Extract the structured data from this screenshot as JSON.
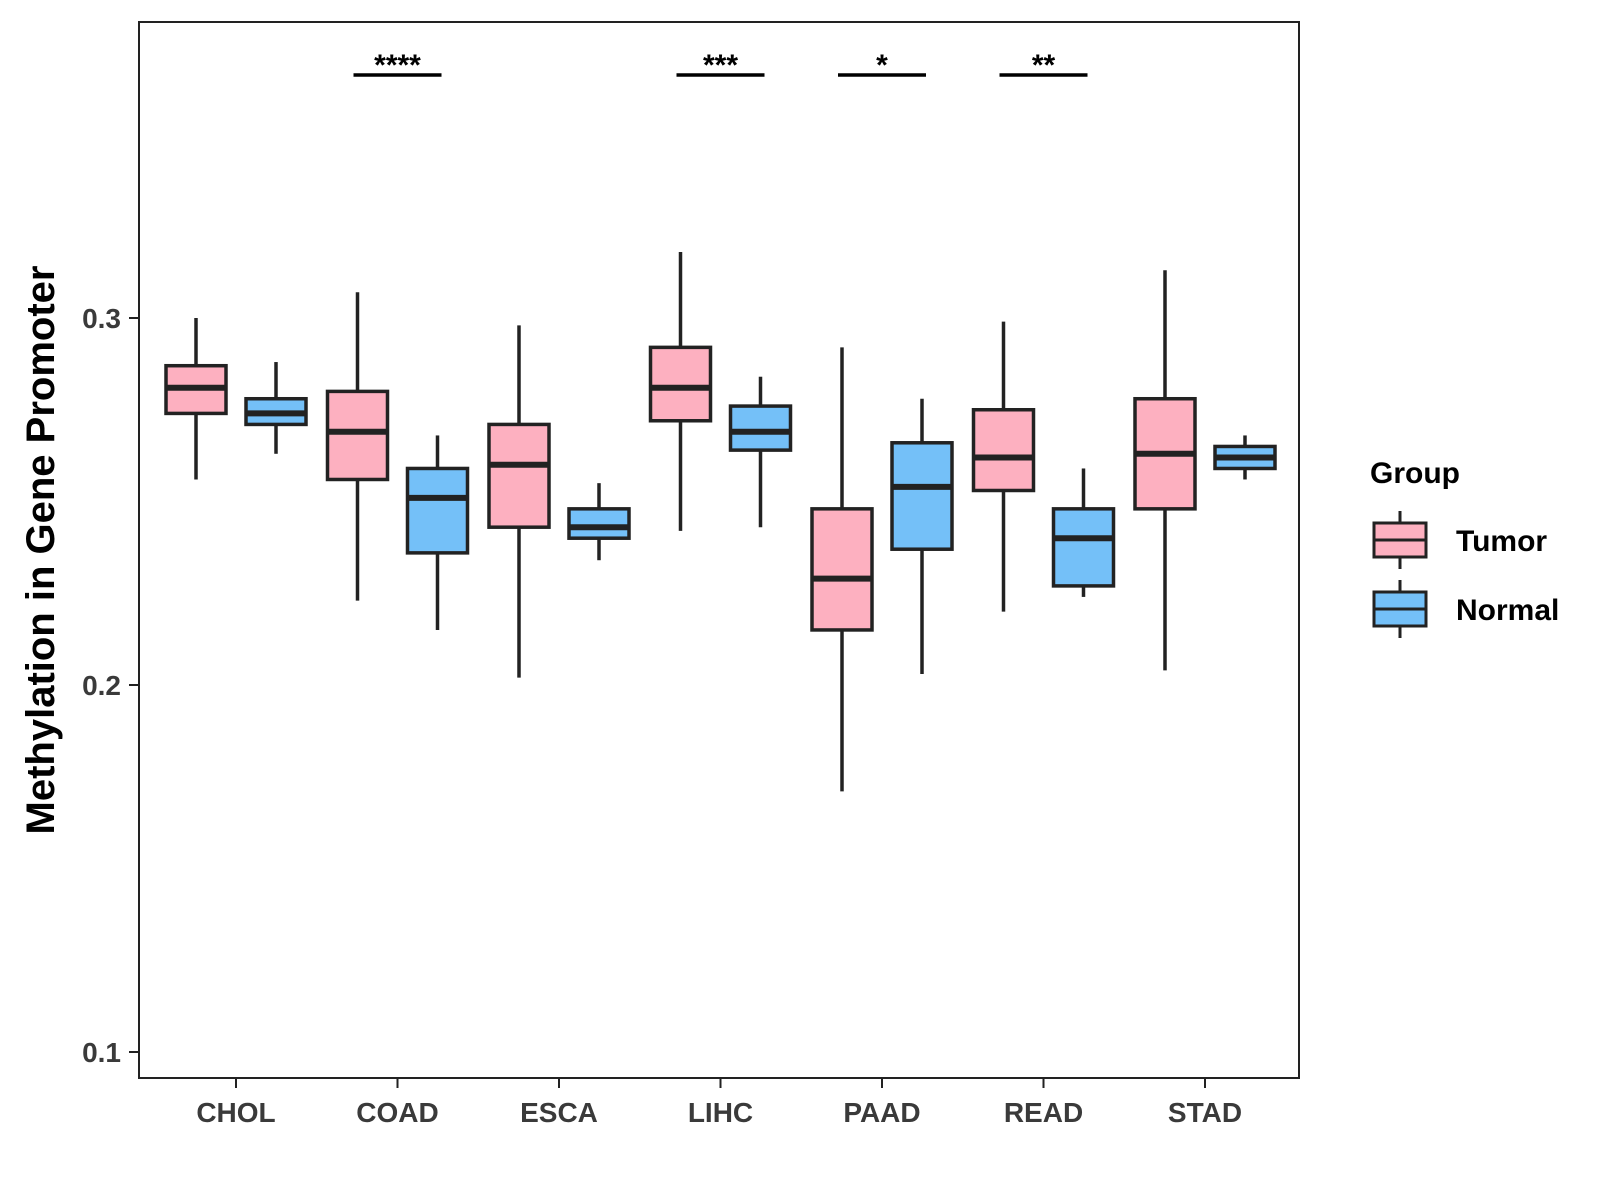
{
  "chart_data": {
    "type": "box",
    "title": "",
    "xlabel": "",
    "ylabel": "Methylation in Gene Promoter",
    "ylim": [
      0.096,
      0.383
    ],
    "yticks": [
      0.1,
      0.2,
      0.3
    ],
    "ytick_labels": [
      "0.1",
      "0.2",
      "0.3"
    ],
    "grid": false,
    "legend_position": "right",
    "categories": [
      "CHOL",
      "COAD",
      "ESCA",
      "LIHC",
      "PAAD",
      "READ",
      "STAD"
    ],
    "series": [
      {
        "name": "Tumor",
        "color": "#FDB0C0",
        "boxes": [
          {
            "category": "CHOL",
            "whisker_low": 0.256,
            "q1": 0.274,
            "median": 0.281,
            "q3": 0.287,
            "whisker_high": 0.3
          },
          {
            "category": "COAD",
            "whisker_low": 0.223,
            "q1": 0.256,
            "median": 0.269,
            "q3": 0.28,
            "whisker_high": 0.307
          },
          {
            "category": "ESCA",
            "whisker_low": 0.202,
            "q1": 0.243,
            "median": 0.26,
            "q3": 0.271,
            "whisker_high": 0.298
          },
          {
            "category": "LIHC",
            "whisker_low": 0.242,
            "q1": 0.272,
            "median": 0.281,
            "q3": 0.292,
            "whisker_high": 0.318
          },
          {
            "category": "PAAD",
            "whisker_low": 0.171,
            "q1": 0.215,
            "median": 0.229,
            "q3": 0.248,
            "whisker_high": 0.292
          },
          {
            "category": "READ",
            "whisker_low": 0.22,
            "q1": 0.253,
            "median": 0.262,
            "q3": 0.275,
            "whisker_high": 0.299
          },
          {
            "category": "STAD",
            "whisker_low": 0.204,
            "q1": 0.248,
            "median": 0.263,
            "q3": 0.278,
            "whisker_high": 0.313
          }
        ]
      },
      {
        "name": "Normal",
        "color": "#74C0F8",
        "boxes": [
          {
            "category": "CHOL",
            "whisker_low": 0.263,
            "q1": 0.271,
            "median": 0.274,
            "q3": 0.278,
            "whisker_high": 0.288
          },
          {
            "category": "COAD",
            "whisker_low": 0.215,
            "q1": 0.236,
            "median": 0.251,
            "q3": 0.259,
            "whisker_high": 0.268
          },
          {
            "category": "ESCA",
            "whisker_low": 0.234,
            "q1": 0.24,
            "median": 0.243,
            "q3": 0.248,
            "whisker_high": 0.255
          },
          {
            "category": "LIHC",
            "whisker_low": 0.243,
            "q1": 0.264,
            "median": 0.269,
            "q3": 0.276,
            "whisker_high": 0.284
          },
          {
            "category": "PAAD",
            "whisker_low": 0.203,
            "q1": 0.237,
            "median": 0.254,
            "q3": 0.266,
            "whisker_high": 0.278
          },
          {
            "category": "READ",
            "whisker_low": 0.224,
            "q1": 0.227,
            "median": 0.24,
            "q3": 0.248,
            "whisker_high": 0.259
          },
          {
            "category": "STAD",
            "whisker_low": 0.256,
            "q1": 0.259,
            "median": 0.262,
            "q3": 0.265,
            "whisker_high": 0.268
          }
        ]
      }
    ],
    "significance": [
      {
        "category": "COAD",
        "label": "****"
      },
      {
        "category": "LIHC",
        "label": "***"
      },
      {
        "category": "PAAD",
        "label": "*"
      },
      {
        "category": "READ",
        "label": "**"
      }
    ],
    "legend": {
      "title": "Group",
      "entries": [
        "Tumor",
        "Normal"
      ]
    }
  }
}
